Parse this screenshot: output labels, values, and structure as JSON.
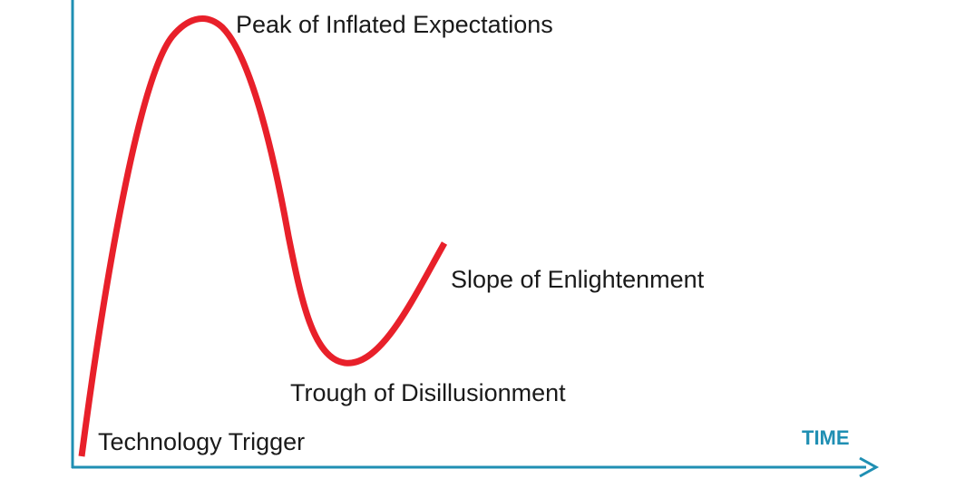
{
  "colors": {
    "curve": "#e8202a",
    "axis": "#1f8fb3",
    "text": "#1a1a1a",
    "background": "#ffffff"
  },
  "labels": {
    "peak": "Peak of Inflated Expectations",
    "slope": "Slope of Enlightenment",
    "trough": "Trough of Disillusionment",
    "trigger": "Technology Trigger"
  },
  "axis": {
    "x_label": "TIME"
  }
}
